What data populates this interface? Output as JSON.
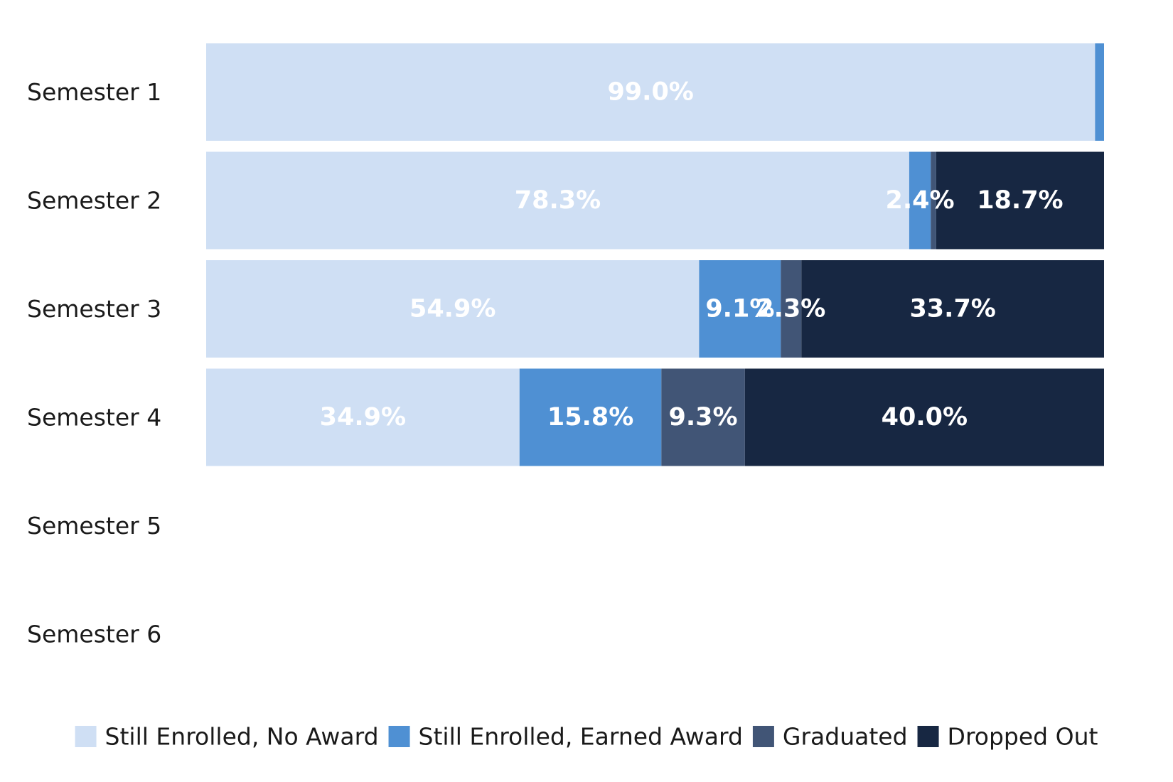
{
  "chart_data": {
    "type": "bar",
    "orientation": "horizontal",
    "stacked": true,
    "title": "",
    "xlabel": "",
    "ylabel": "",
    "xlim": [
      0,
      100
    ],
    "grid": false,
    "legend_position": "bottom",
    "categories": [
      "Semester 1",
      "Semester 2",
      "Semester 3",
      "Semester 4",
      "Semester 5",
      "Semester 6"
    ],
    "series": [
      {
        "name": "Still Enrolled, No Award",
        "color": "#cfdff4",
        "values": [
          99.0,
          78.3,
          54.9,
          34.9,
          null,
          null
        ],
        "labels": [
          "99.0%",
          "78.3%",
          "54.9%",
          "34.9%",
          "",
          ""
        ]
      },
      {
        "name": "Still Enrolled, Earned Award",
        "color": "#4f90d3",
        "values": [
          1.0,
          2.4,
          9.1,
          15.8,
          null,
          null
        ],
        "labels": [
          "",
          "2.4%",
          "9.1%",
          "15.8%",
          "",
          ""
        ]
      },
      {
        "name": "Graduated",
        "color": "#415576",
        "values": [
          0,
          0.6,
          2.3,
          9.3,
          null,
          null
        ],
        "labels": [
          "",
          "",
          "2.3%",
          "9.3%",
          "",
          ""
        ]
      },
      {
        "name": "Dropped Out",
        "color": "#172742",
        "values": [
          0,
          18.7,
          33.7,
          40.0,
          null,
          null
        ],
        "labels": [
          "",
          "18.7%",
          "33.7%",
          "40.0%",
          "",
          ""
        ]
      }
    ]
  }
}
